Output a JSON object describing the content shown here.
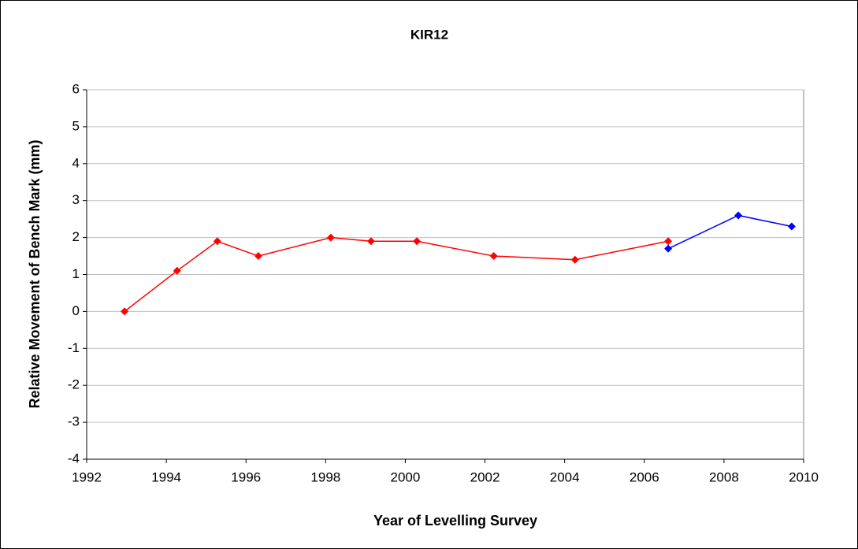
{
  "chart_data": {
    "type": "line",
    "title": "KIR12",
    "x_label": "Year of Levelling Survey",
    "y_label": "Relative Movement of Bench Mark (mm)",
    "xlim": [
      1992,
      2010
    ],
    "xticks": [
      1992,
      1994,
      1996,
      1998,
      2000,
      2002,
      2004,
      2006,
      2008,
      2010
    ],
    "ylim": [
      -4,
      6
    ],
    "yticks": [
      -4,
      -3,
      -2,
      -1,
      0,
      1,
      2,
      3,
      4,
      5,
      6
    ],
    "grid": true,
    "series": [
      {
        "color": "#ff0000",
        "x": [
          1992.95,
          1994.27,
          1995.28,
          1996.31,
          1998.13,
          1999.14,
          2000.29,
          2002.22,
          2004.26,
          2006.6
        ],
        "values": [
          0,
          1.1,
          1.9,
          1.5,
          2.0,
          1.9,
          1.9,
          1.5,
          1.4,
          1.9
        ]
      },
      {
        "color": "#0000ff",
        "x": [
          2006.6,
          2008.36,
          2009.7
        ],
        "values": [
          1.7,
          2.6,
          2.3
        ]
      }
    ]
  }
}
